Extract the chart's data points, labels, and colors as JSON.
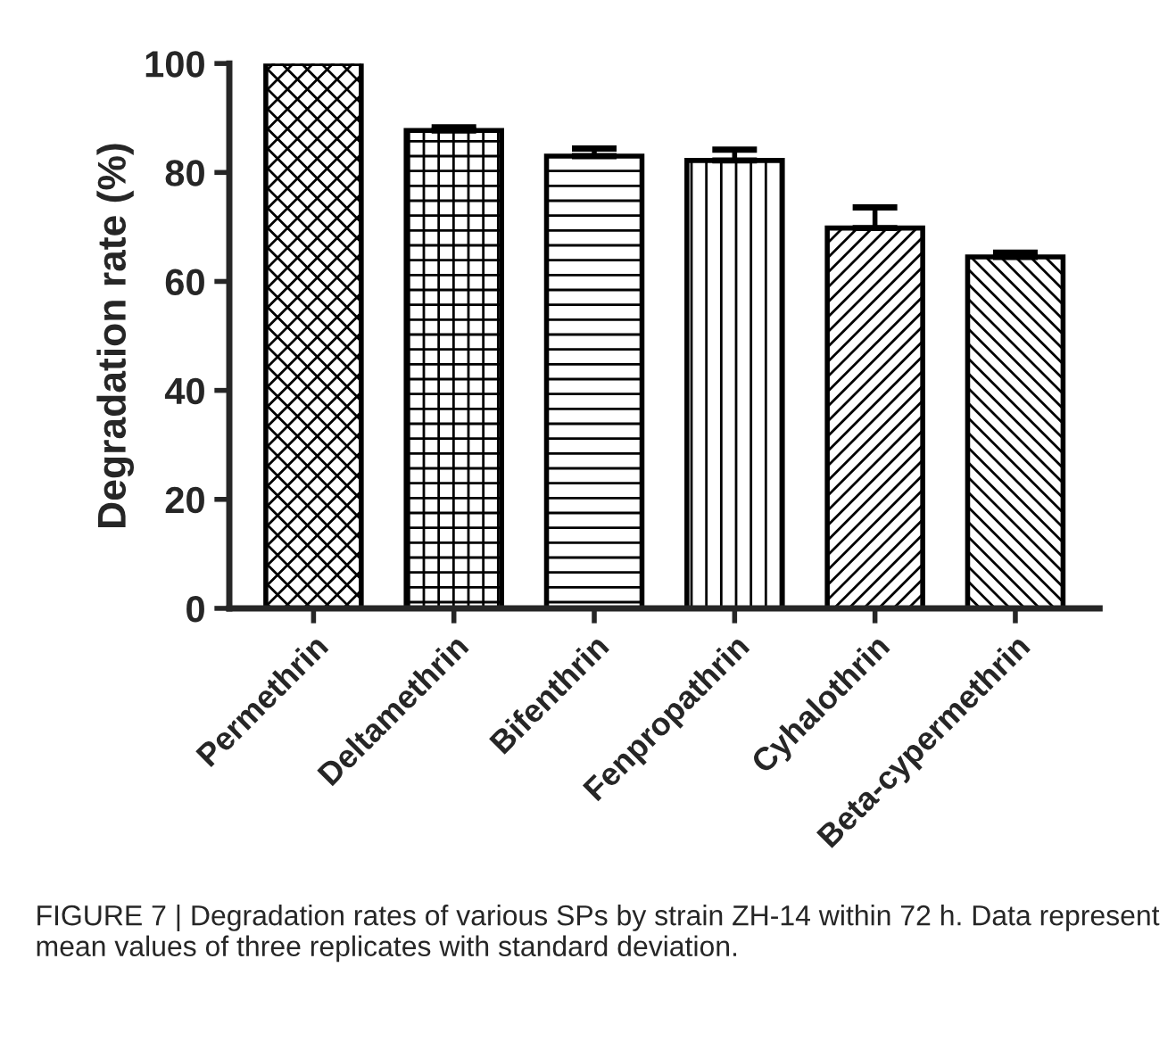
{
  "chart_data": {
    "type": "bar",
    "ylabel": "Degradation rate (%)",
    "categories": [
      "Permethrin",
      "Deltamethrin",
      "Bifenthrin",
      "Fenpropathrin",
      "Cyhalothrin",
      "Beta-cypermethrin"
    ],
    "values": [
      100,
      87.7,
      83.0,
      82.2,
      69.8,
      64.5
    ],
    "errors": [
      null,
      0.6,
      1.4,
      2.0,
      3.8,
      0.8
    ],
    "color": "#000000",
    "ylim": [
      0,
      100
    ],
    "yticks": [
      0,
      20,
      40,
      60,
      80,
      100
    ],
    "grid": false,
    "annotations": [
      "FIGURE 7 | Degradation rates of various SPs by strain ZH-14 within 72 h. Data represent mean values of three replicates with standard deviation."
    ]
  }
}
